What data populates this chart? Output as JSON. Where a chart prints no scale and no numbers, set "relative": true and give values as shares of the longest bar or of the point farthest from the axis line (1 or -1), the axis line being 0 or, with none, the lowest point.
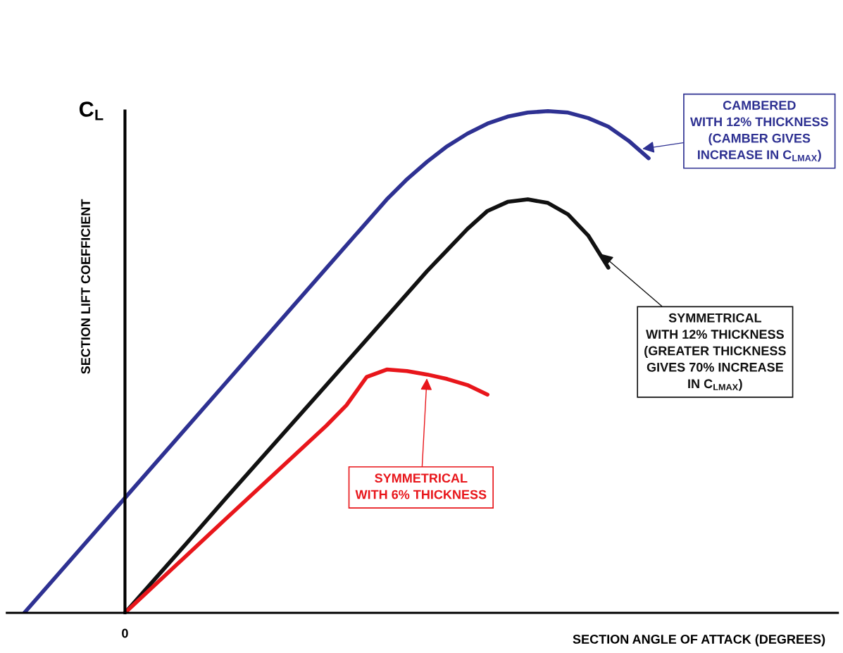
{
  "chart_data": {
    "type": "line",
    "relative": true,
    "legend": false,
    "marker": "none",
    "line_style": "solid",
    "xlabel": "SECTION ANGLE OF ATTACK (DEGREES)",
    "ylabel": "SECTION LIFT COEFFICIENT",
    "categories": [
      null,
      null,
      null,
      null,
      null,
      null,
      null,
      null,
      null,
      null,
      null,
      null,
      null,
      null,
      null,
      null,
      null,
      null,
      null,
      null,
      null,
      null,
      null,
      null,
      null,
      null,
      null,
      null,
      null,
      null,
      null,
      null,
      null,
      null,
      null,
      null,
      null,
      null,
      null,
      null,
      null
    ],
    "series": [
      {
        "color": "#2e3192",
        "values": [
          0,
          null,
          null,
          null,
          null,
          0.229,
          null,
          null,
          null,
          null,
          0.458,
          null,
          null,
          null,
          null,
          0.687,
          null,
          null,
          0.824,
          0.864,
          0.899,
          0.93,
          0.955,
          0.975,
          0.989,
          0.997,
          1.0,
          0.997,
          0.986,
          0.969,
          0.941,
          0.906,
          null,
          null,
          null,
          null,
          null,
          null,
          null,
          null,
          null
        ]
      },
      {
        "color": "#111111",
        "values": [
          null,
          null,
          null,
          null,
          null,
          0,
          null,
          null,
          0.136,
          null,
          0.228,
          null,
          null,
          null,
          null,
          0.454,
          null,
          null,
          null,
          null,
          0.681,
          0.723,
          0.765,
          0.801,
          0.819,
          0.824,
          0.817,
          0.794,
          0.752,
          0.688,
          null,
          null,
          null,
          null,
          null,
          null,
          null,
          null,
          null,
          null,
          null
        ]
      },
      {
        "color": "#e8161b",
        "values": [
          null,
          null,
          null,
          null,
          null,
          0,
          null,
          null,
          null,
          null,
          0.187,
          null,
          null,
          null,
          null,
          0.373,
          0.414,
          0.47,
          0.485,
          0.482,
          0.475,
          0.466,
          0.454,
          0.435,
          null,
          null,
          null,
          null,
          null,
          null,
          null,
          null,
          null,
          null,
          null,
          null,
          null,
          null,
          null,
          null,
          null
        ]
      }
    ],
    "annotations": [
      "C$_{L}$",
      "0",
      "CAMBERED\nWITH 12% THICKNESS\n(CAMBER GIVES\nINCREASE IN C$_{LMAX}$)",
      "SYMMETRICAL\nWITH 12% THICKNESS\n(GREATER THICKNESS\nGIVES 70% INCREASE\nIN C$_{LMAX}$)",
      "SYMMETRICAL\nWITH 6% THICKNESS"
    ]
  }
}
